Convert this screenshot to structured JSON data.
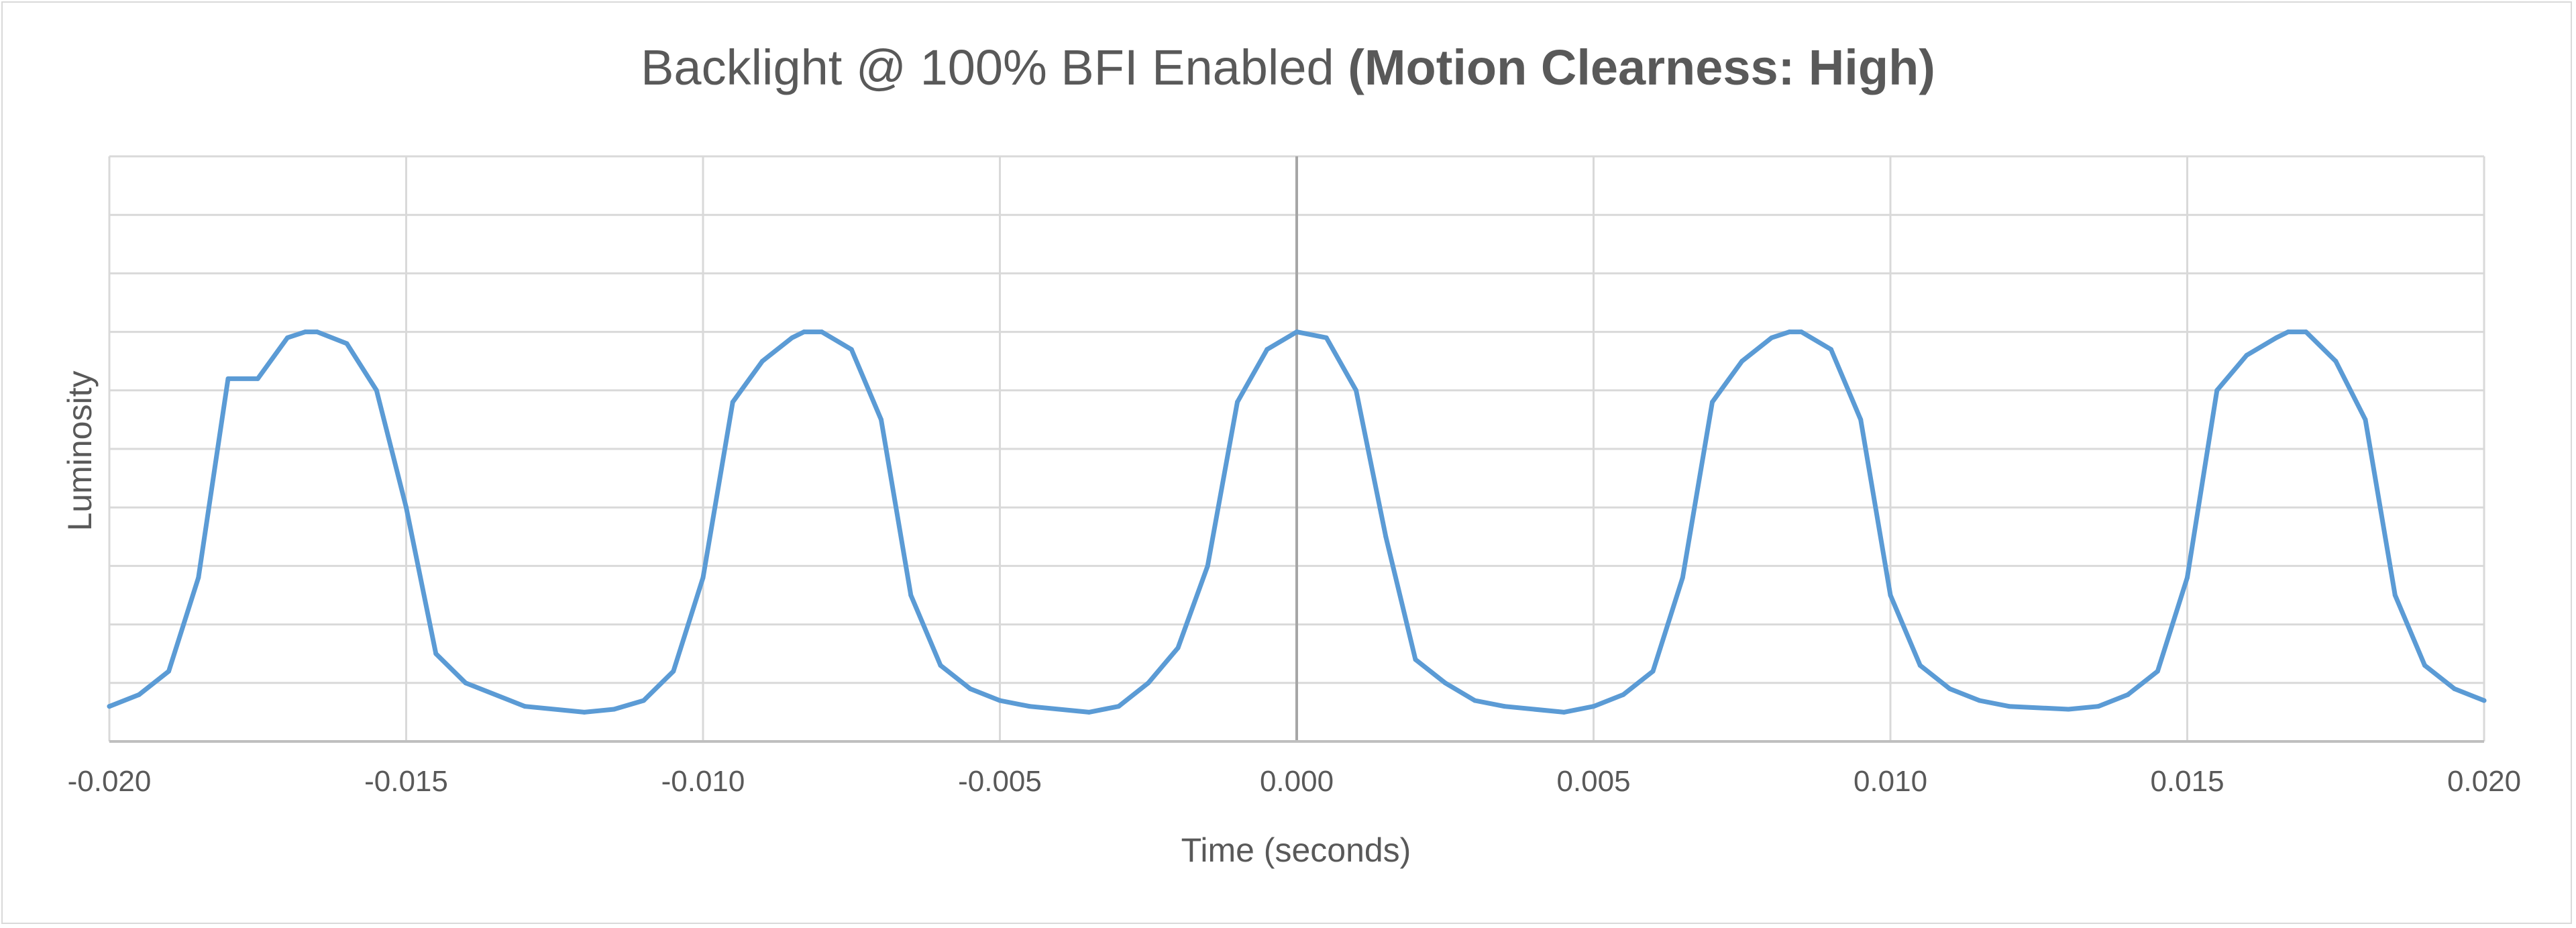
{
  "chart_data": {
    "type": "line",
    "title": "Backlight @ 100% BFI Enabled",
    "title_emphasis": "(Motion Clearness: High)",
    "xlabel": "Time (seconds)",
    "ylabel": "Luminosity",
    "xlim": [
      -0.02,
      0.02
    ],
    "ylim": [
      0,
      1
    ],
    "x_ticks": [
      -0.02,
      -0.015,
      -0.01,
      -0.005,
      0.0,
      0.005,
      0.01,
      0.015,
      0.02
    ],
    "x_tick_labels": [
      "-0.020",
      "-0.015",
      "-0.010",
      "-0.005",
      "0.000",
      "0.005",
      "0.010",
      "0.015",
      "0.020"
    ],
    "y_gridlines": 10,
    "y_tick_labels_shown": false,
    "grid": true,
    "legend": "none",
    "series": [
      {
        "color": "#5b9bd5",
        "x": [
          -0.02,
          -0.0195,
          -0.019,
          -0.0185,
          -0.018,
          -0.0175,
          -0.017,
          -0.0167,
          -0.0165,
          -0.016,
          -0.0155,
          -0.015,
          -0.0145,
          -0.014,
          -0.013,
          -0.012,
          -0.0115,
          -0.011,
          -0.0105,
          -0.01,
          -0.0095,
          -0.009,
          -0.0085,
          -0.0083,
          -0.008,
          -0.0075,
          -0.007,
          -0.0065,
          -0.006,
          -0.0055,
          -0.005,
          -0.0045,
          -0.0035,
          -0.003,
          -0.0025,
          -0.002,
          -0.0015,
          -0.001,
          -0.0005,
          0.0,
          0.0005,
          0.001,
          0.0015,
          0.002,
          0.0025,
          0.003,
          0.0035,
          0.0045,
          0.005,
          0.0055,
          0.006,
          0.0065,
          0.007,
          0.0075,
          0.008,
          0.0083,
          0.0085,
          0.009,
          0.0095,
          0.01,
          0.0105,
          0.011,
          0.0115,
          0.012,
          0.013,
          0.0135,
          0.014,
          0.0145,
          0.015,
          0.0155,
          0.016,
          0.0165,
          0.0167,
          0.017,
          0.0175,
          0.018,
          0.0185,
          0.019,
          0.0195,
          0.02
        ],
        "y": [
          0.06,
          0.08,
          0.12,
          0.28,
          0.62,
          0.62,
          0.69,
          0.7,
          0.7,
          0.68,
          0.6,
          0.4,
          0.15,
          0.1,
          0.06,
          0.05,
          0.055,
          0.07,
          0.12,
          0.28,
          0.58,
          0.65,
          0.69,
          0.7,
          0.7,
          0.67,
          0.55,
          0.25,
          0.13,
          0.09,
          0.07,
          0.06,
          0.05,
          0.06,
          0.1,
          0.16,
          0.3,
          0.58,
          0.67,
          0.7,
          0.69,
          0.6,
          0.35,
          0.14,
          0.1,
          0.07,
          0.06,
          0.05,
          0.06,
          0.08,
          0.12,
          0.28,
          0.58,
          0.65,
          0.69,
          0.7,
          0.7,
          0.67,
          0.55,
          0.25,
          0.13,
          0.09,
          0.07,
          0.06,
          0.055,
          0.06,
          0.08,
          0.12,
          0.28,
          0.6,
          0.66,
          0.69,
          0.7,
          0.7,
          0.65,
          0.55,
          0.25,
          0.13,
          0.09,
          0.07
        ]
      }
    ]
  }
}
